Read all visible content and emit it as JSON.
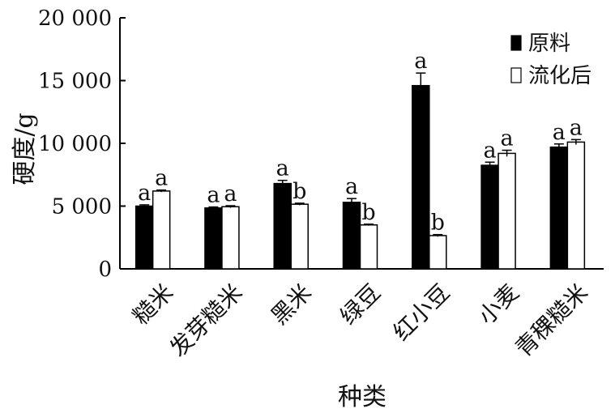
{
  "chart_data": {
    "type": "bar",
    "title": "",
    "xlabel": "种类",
    "ylabel": "硬度/g",
    "ylim": [
      0,
      20000
    ],
    "yticks": [
      {
        "value": 0,
        "label": "0"
      },
      {
        "value": 5000,
        "label": "5 000"
      },
      {
        "value": 10000,
        "label": "10 000"
      },
      {
        "value": 15000,
        "label": "15 000"
      },
      {
        "value": 20000,
        "label": "20 000"
      }
    ],
    "categories": [
      "糙米",
      "发芽糙米",
      "黑米",
      "绿豆",
      "红小豆",
      "小麦",
      "青稞糙米"
    ],
    "series": [
      {
        "name": "原料",
        "color": "#000000",
        "values": [
          5000,
          4850,
          6800,
          5300,
          14600,
          8250,
          9700
        ],
        "errors": [
          100,
          80,
          250,
          300,
          1000,
          250,
          250
        ],
        "significance": [
          "a",
          "a",
          "a",
          "a",
          "a",
          "a",
          "a"
        ]
      },
      {
        "name": "流化后",
        "color": "#ffffff",
        "values": [
          6200,
          4950,
          5150,
          3500,
          2650,
          9200,
          10100
        ],
        "errors": [
          80,
          80,
          80,
          60,
          80,
          250,
          200
        ],
        "significance": [
          "a",
          "a",
          "b",
          "b",
          "b",
          "a",
          "a"
        ]
      }
    ],
    "legend_position": "top-right",
    "grid": false
  }
}
